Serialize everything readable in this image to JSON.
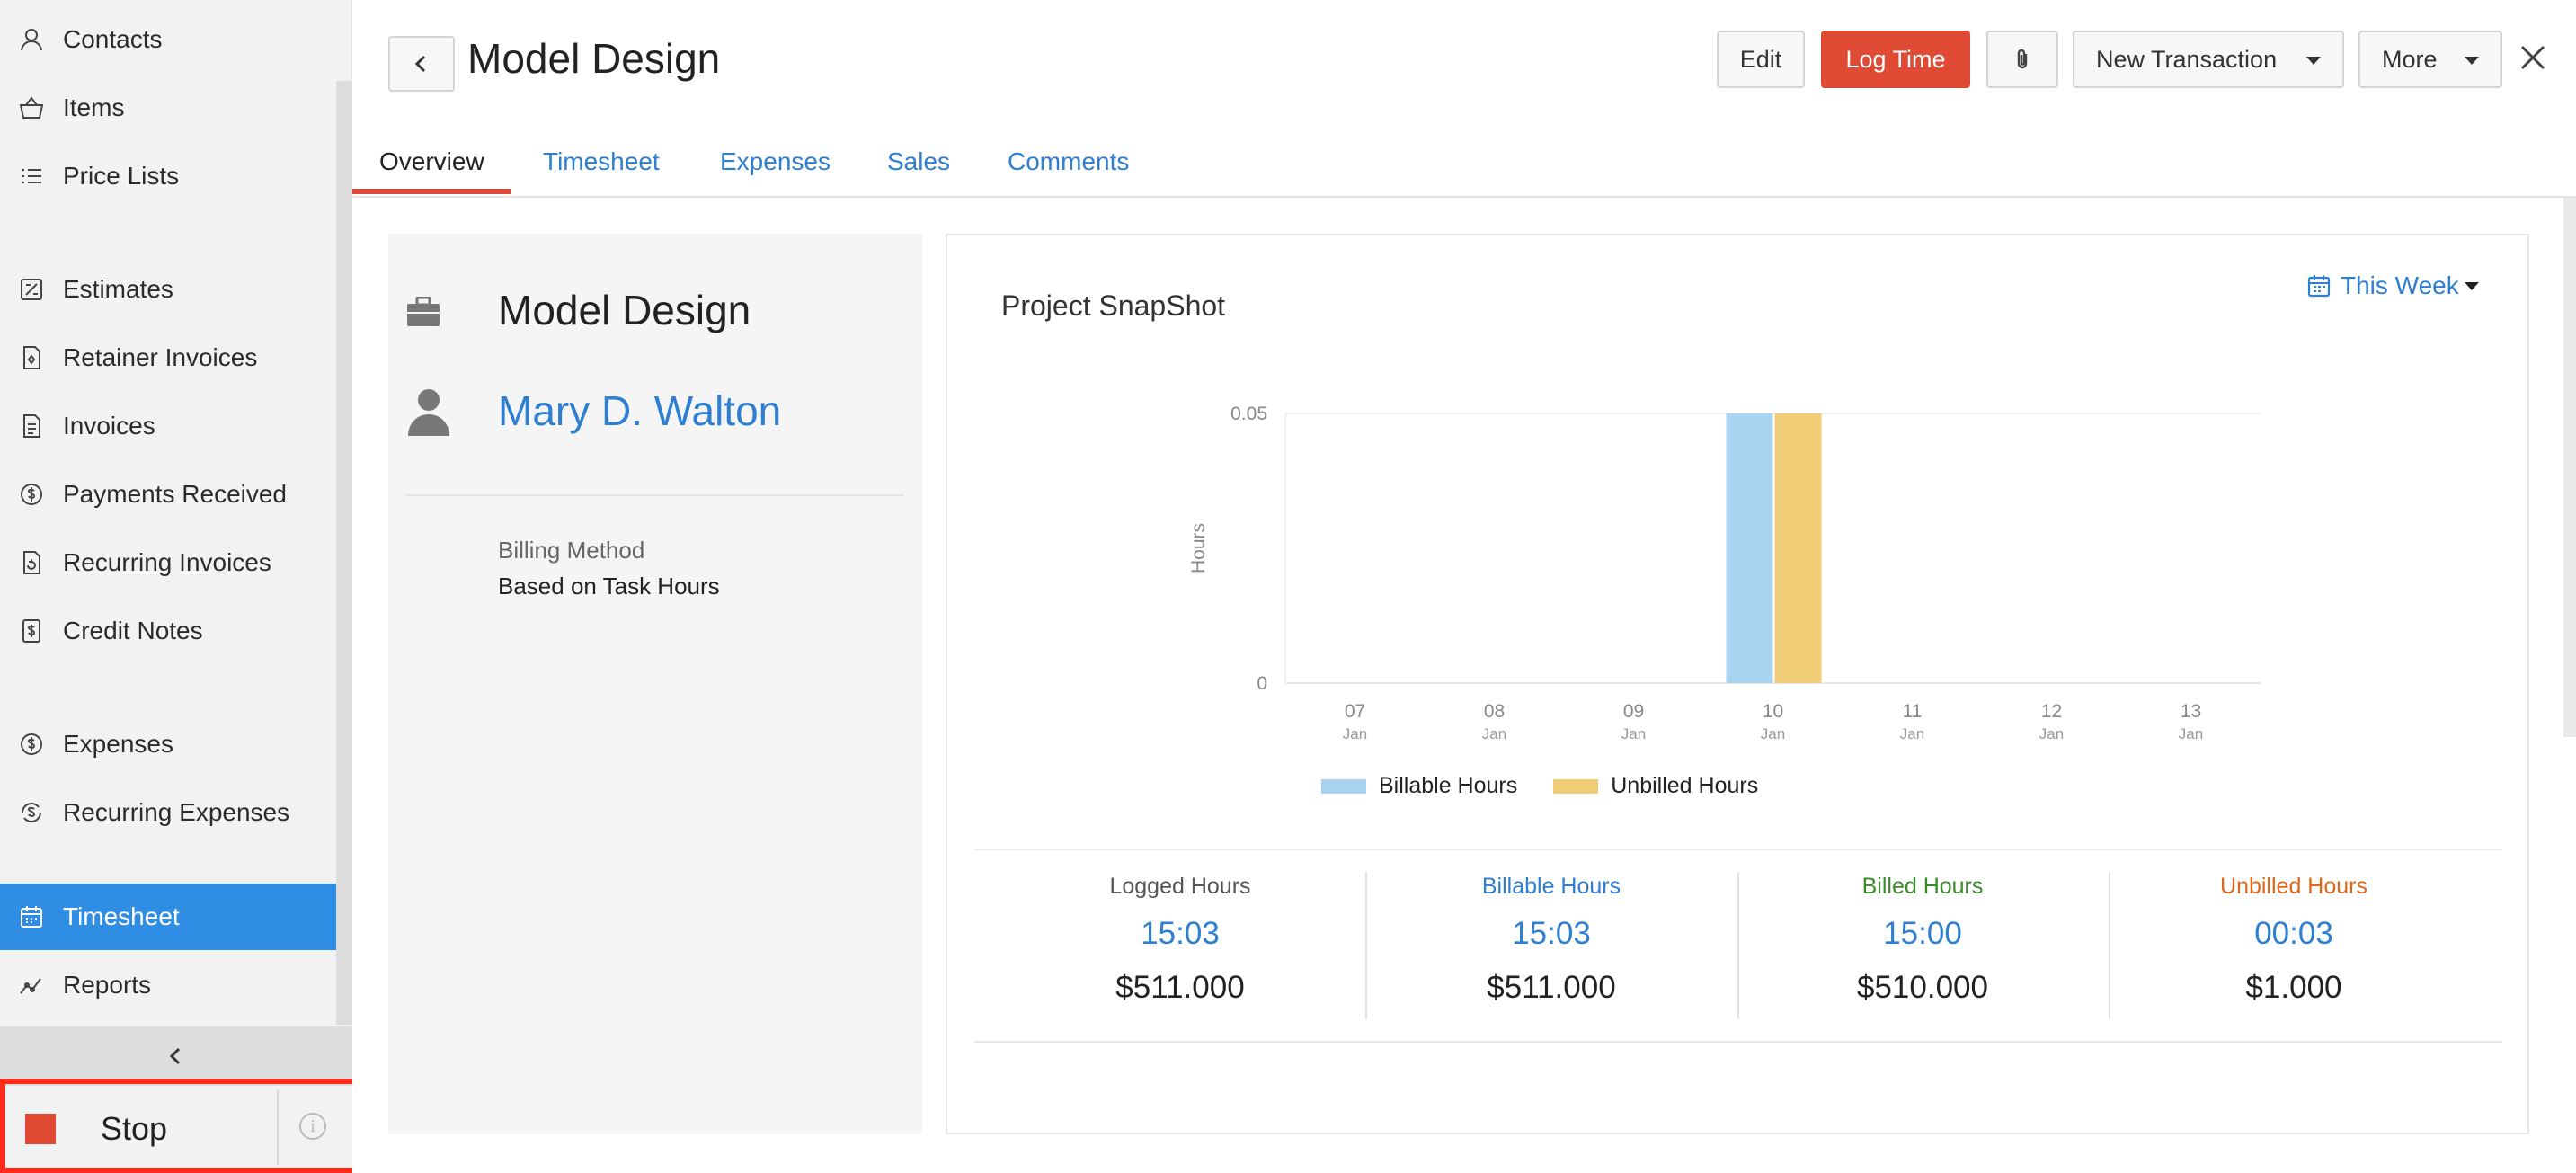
{
  "sidebar": {
    "items": [
      {
        "label": "Contacts",
        "icon": "person-icon"
      },
      {
        "label": "Items",
        "icon": "basket-icon"
      },
      {
        "label": "Price Lists",
        "icon": "list-icon"
      },
      {
        "label": "Estimates",
        "icon": "estimate-icon"
      },
      {
        "label": "Retainer Invoices",
        "icon": "retainer-invoice-icon"
      },
      {
        "label": "Invoices",
        "icon": "invoice-icon"
      },
      {
        "label": "Payments Received",
        "icon": "payment-icon"
      },
      {
        "label": "Recurring Invoices",
        "icon": "recurring-invoice-icon"
      },
      {
        "label": "Credit Notes",
        "icon": "credit-note-icon"
      },
      {
        "label": "Expenses",
        "icon": "dollar-circle-icon"
      },
      {
        "label": "Recurring Expenses",
        "icon": "recurring-expense-icon"
      },
      {
        "label": "Timesheet",
        "icon": "calendar-icon",
        "active": true
      },
      {
        "label": "Reports",
        "icon": "chart-line-icon"
      }
    ],
    "active_color": "#2f8de4"
  },
  "timer": {
    "stop_label": "Stop",
    "info_glyph": "i",
    "stop_color": "#e04a35"
  },
  "header": {
    "title": "Model Design",
    "edit_label": "Edit",
    "log_time_label": "Log Time",
    "new_transaction_label": "New Transaction",
    "more_label": "More",
    "accent_color": "#e04a35"
  },
  "tabs": [
    {
      "label": "Overview",
      "active": true
    },
    {
      "label": "Timesheet"
    },
    {
      "label": "Expenses"
    },
    {
      "label": "Sales"
    },
    {
      "label": "Comments"
    }
  ],
  "project": {
    "name": "Model Design",
    "customer": "Mary D. Walton",
    "billing_method_label": "Billing Method",
    "billing_method_value": "Based on Task Hours"
  },
  "snapshot": {
    "title": "Project SnapShot",
    "period": "This Week"
  },
  "chart_data": {
    "type": "bar",
    "ylabel": "Hours",
    "ylim": [
      0,
      0.05
    ],
    "yticks": [
      "0",
      "0.05"
    ],
    "categories": [
      {
        "day": "07",
        "month": "Jan"
      },
      {
        "day": "08",
        "month": "Jan"
      },
      {
        "day": "09",
        "month": "Jan"
      },
      {
        "day": "10",
        "month": "Jan"
      },
      {
        "day": "11",
        "month": "Jan"
      },
      {
        "day": "12",
        "month": "Jan"
      },
      {
        "day": "13",
        "month": "Jan"
      }
    ],
    "series": [
      {
        "name": "Billable Hours",
        "color": "#a8d4f2",
        "values": [
          0,
          0,
          0,
          0.05,
          0,
          0,
          0
        ]
      },
      {
        "name": "Unbilled Hours",
        "color": "#f0cd76",
        "values": [
          0,
          0,
          0,
          0.05,
          0,
          0,
          0
        ]
      }
    ],
    "legend_position": "bottom"
  },
  "summary": [
    {
      "label": "Logged Hours",
      "hours": "15:03",
      "amount": "$511.000",
      "color": "#555555"
    },
    {
      "label": "Billable Hours",
      "hours": "15:03",
      "amount": "$511.000",
      "color": "#2f7fd0"
    },
    {
      "label": "Billed Hours",
      "hours": "15:00",
      "amount": "$510.000",
      "color": "#3a8a2a"
    },
    {
      "label": "Unbilled Hours",
      "hours": "00:03",
      "amount": "$1.000",
      "color": "#e0671a"
    }
  ]
}
